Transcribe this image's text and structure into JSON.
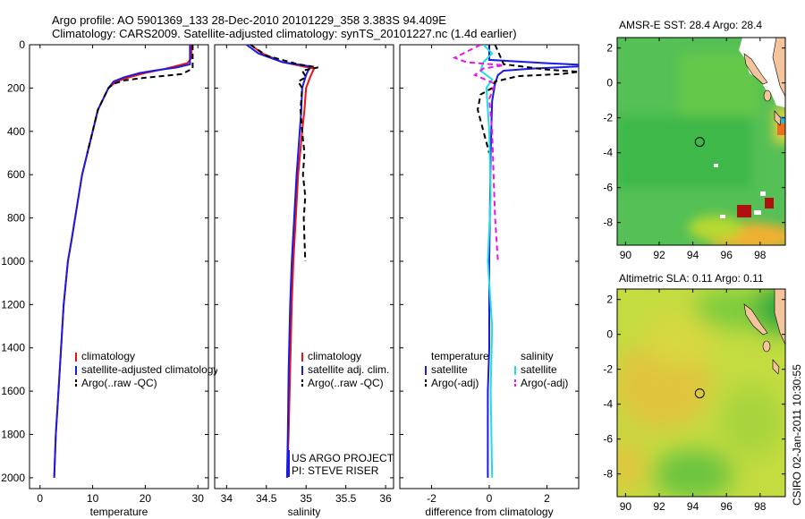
{
  "header": {
    "title_line1": "Argo profile: AO 5901369_133 28-Dec-2010 20101229_358 3.383S 94.409E",
    "title_line2": "Climatology: CARS2009. Satellite-adjusted climatology: synTS_20101227.nc (1.4d earlier)"
  },
  "side_text": "CSIRO 02-Jan-2011 10:30:55",
  "colors": {
    "climatology": "#ee1111",
    "satellite": "#1a1ae0",
    "argo": "#000000",
    "sal_satellite": "#22dddd",
    "sal_argo": "#ee11ee",
    "land": "#f4c49c"
  },
  "chart_data": [
    {
      "id": "temperature",
      "type": "line",
      "xlabel": "temperature",
      "xlim": [
        -2,
        32
      ],
      "ylim": [
        0,
        2050
      ],
      "yreversed": true,
      "xticks": [
        0,
        10,
        20,
        30
      ],
      "yticks": [
        0,
        200,
        400,
        600,
        800,
        1000,
        1200,
        1400,
        1600,
        1800,
        2000
      ],
      "legend": {
        "position": "lower-right",
        "entries": [
          "climatology",
          "satellite-adjusted climatology",
          "Argo(..raw -QC)"
        ]
      },
      "series": [
        {
          "name": "climatology",
          "color": "#ee1111",
          "style": "solid",
          "points": [
            [
              28.8,
              0
            ],
            [
              28.8,
              60
            ],
            [
              28,
              85
            ],
            [
              24,
              110
            ],
            [
              20,
              130
            ],
            [
              17,
              150
            ],
            [
              14.5,
              170
            ],
            [
              13,
              200
            ],
            [
              12,
              250
            ],
            [
              11,
              300
            ],
            [
              10,
              400
            ],
            [
              9,
              500
            ],
            [
              8,
              600
            ],
            [
              7,
              750
            ],
            [
              6,
              900
            ],
            [
              5.3,
              1000
            ],
            [
              4.5,
              1200
            ],
            [
              4,
              1400
            ],
            [
              3.5,
              1600
            ],
            [
              3,
              1800
            ],
            [
              2.7,
              2000
            ]
          ]
        },
        {
          "name": "satellite-adjusted climatology",
          "color": "#1a1ae0",
          "style": "solid",
          "points": [
            [
              28.5,
              0
            ],
            [
              28.5,
              90
            ],
            [
              26,
              105
            ],
            [
              22,
              118
            ],
            [
              19,
              130
            ],
            [
              16,
              150
            ],
            [
              14,
              170
            ],
            [
              13,
              200
            ],
            [
              12,
              250
            ],
            [
              11,
              300
            ],
            [
              10,
              400
            ],
            [
              9,
              500
            ],
            [
              8,
              600
            ],
            [
              7,
              750
            ],
            [
              6,
              900
            ],
            [
              5.3,
              1000
            ],
            [
              4.5,
              1200
            ],
            [
              4,
              1400
            ],
            [
              3.5,
              1600
            ],
            [
              3,
              1800
            ],
            [
              2.7,
              2000
            ]
          ]
        },
        {
          "name": "Argo(..raw -QC)",
          "color": "#000000",
          "style": "dashed",
          "points": [
            [
              29,
              0
            ],
            [
              29,
              110
            ],
            [
              27,
              135
            ],
            [
              23,
              145
            ],
            [
              19,
              155
            ],
            [
              16,
              165
            ],
            [
              14,
              180
            ],
            [
              13,
              200
            ],
            [
              12,
              250
            ],
            [
              11,
              300
            ],
            [
              10,
              400
            ],
            [
              9,
              500
            ]
          ]
        }
      ]
    },
    {
      "id": "salinity",
      "type": "line",
      "xlabel": "salinity",
      "xlim": [
        33.85,
        36.1
      ],
      "ylim": [
        0,
        2050
      ],
      "yreversed": true,
      "xticks": [
        34,
        34.5,
        35,
        35.5,
        36
      ],
      "legend": {
        "position": "lower-right",
        "entries": [
          "climatology",
          "satellite adj. clim.",
          "Argo(..raw -QC)"
        ]
      },
      "annotation": [
        "US ARGO PROJECT",
        "PI: STEVE RISER"
      ],
      "series": [
        {
          "name": "climatology",
          "color": "#ee1111",
          "style": "solid",
          "points": [
            [
              34.3,
              0
            ],
            [
              34.45,
              40
            ],
            [
              34.7,
              80
            ],
            [
              35.1,
              110
            ],
            [
              35.05,
              150
            ],
            [
              35.0,
              200
            ],
            [
              34.98,
              300
            ],
            [
              34.95,
              400
            ],
            [
              34.9,
              600
            ],
            [
              34.87,
              800
            ],
            [
              34.84,
              1000
            ],
            [
              34.82,
              1200
            ],
            [
              34.8,
              1500
            ],
            [
              34.78,
              1800
            ],
            [
              34.76,
              2000
            ]
          ]
        },
        {
          "name": "satellite adj. clim.",
          "color": "#1a1ae0",
          "style": "solid",
          "points": [
            [
              34.25,
              0
            ],
            [
              34.4,
              40
            ],
            [
              34.7,
              80
            ],
            [
              35.05,
              100
            ],
            [
              35.0,
              140
            ],
            [
              34.95,
              200
            ],
            [
              34.94,
              300
            ],
            [
              34.92,
              400
            ],
            [
              34.88,
              600
            ],
            [
              34.85,
              800
            ],
            [
              34.82,
              1000
            ],
            [
              34.8,
              1200
            ],
            [
              34.78,
              1500
            ],
            [
              34.77,
              1800
            ],
            [
              34.76,
              2000
            ]
          ]
        },
        {
          "name": "Argo(..raw -QC)",
          "color": "#000000",
          "style": "dashed",
          "points": [
            [
              34.3,
              0
            ],
            [
              34.5,
              50
            ],
            [
              34.9,
              90
            ],
            [
              35.15,
              105
            ],
            [
              34.95,
              120
            ],
            [
              35.0,
              150
            ],
            [
              34.9,
              170
            ],
            [
              34.95,
              200
            ],
            [
              34.93,
              300
            ],
            [
              34.95,
              400
            ],
            [
              34.98,
              500
            ],
            [
              34.96,
              600
            ],
            [
              34.99,
              700
            ],
            [
              34.97,
              800
            ],
            [
              34.98,
              900
            ],
            [
              34.99,
              1000
            ]
          ]
        }
      ]
    },
    {
      "id": "difference",
      "type": "line",
      "xlabel": "difference from climatology",
      "xlim": [
        -3.1,
        3.1
      ],
      "ylim": [
        0,
        2050
      ],
      "yreversed": true,
      "xticks": [
        -2,
        0,
        2
      ],
      "legend": {
        "position": "lower",
        "columns": [
          [
            "temperature",
            "satellite",
            "Argo(-adj)"
          ],
          [
            "salinity",
            "satellite",
            "Argo(-adj)"
          ]
        ]
      },
      "series": [
        {
          "name": "temperature satellite",
          "color": "#1a1ae0",
          "style": "solid",
          "points": [
            [
              0,
              0
            ],
            [
              0,
              70
            ],
            [
              2,
              85
            ],
            [
              3.1,
              92
            ],
            [
              3.1,
              100
            ],
            [
              1.5,
              110
            ],
            [
              0.5,
              120
            ],
            [
              0.3,
              140
            ],
            [
              0.2,
              180
            ],
            [
              0.1,
              260
            ],
            [
              0.05,
              500
            ],
            [
              0,
              1000
            ],
            [
              0,
              1400
            ],
            [
              -0.05,
              1600
            ],
            [
              -0.05,
              2000
            ]
          ]
        },
        {
          "name": "temperature Argo(-adj)",
          "color": "#000000",
          "style": "dashed",
          "points": [
            [
              0.2,
              0
            ],
            [
              0.5,
              90
            ],
            [
              2,
              115
            ],
            [
              3.1,
              125
            ],
            [
              2.5,
              135
            ],
            [
              1,
              145
            ],
            [
              0.2,
              170
            ],
            [
              0.1,
              200
            ],
            [
              -0.3,
              230
            ],
            [
              -0.4,
              300
            ],
            [
              -0.2,
              400
            ],
            [
              0,
              500
            ]
          ]
        },
        {
          "name": "salinity satellite",
          "color": "#22dddd",
          "style": "solid",
          "points": [
            [
              -0.2,
              0
            ],
            [
              0.1,
              40
            ],
            [
              -0.2,
              80
            ],
            [
              -0.3,
              120
            ],
            [
              0.1,
              160
            ],
            [
              -0.1,
              200
            ],
            [
              0,
              400
            ],
            [
              0.05,
              700
            ],
            [
              -0.05,
              1000
            ],
            [
              0.1,
              1300
            ],
            [
              0.05,
              1600
            ],
            [
              0.1,
              2000
            ]
          ]
        },
        {
          "name": "salinity Argo(-adj)",
          "color": "#ee11ee",
          "style": "dashed",
          "points": [
            [
              -0.3,
              0
            ],
            [
              -1.2,
              60
            ],
            [
              -0.8,
              80
            ],
            [
              0.5,
              95
            ],
            [
              -0.2,
              110
            ],
            [
              -0.5,
              140
            ],
            [
              0.2,
              180
            ],
            [
              0,
              250
            ],
            [
              0.1,
              400
            ],
            [
              0.15,
              600
            ],
            [
              0.2,
              800
            ],
            [
              0.3,
              1000
            ]
          ]
        }
      ]
    },
    {
      "id": "sst_map",
      "type": "heatmap",
      "title": "AMSR-E SST: 28.4 Argo: 28.4",
      "xlim": [
        89.5,
        99.5
      ],
      "ylim": [
        -9.3,
        2.6
      ],
      "xticks": [
        90,
        92,
        94,
        96,
        98
      ],
      "yticks": [
        -8,
        -6,
        -4,
        -2,
        0,
        2
      ],
      "profile_location": [
        94.409,
        -3.383
      ]
    },
    {
      "id": "sla_map",
      "type": "heatmap",
      "title": "Altimetric SLA: 0.11 Argo: 0.11",
      "xlim": [
        89.5,
        99.5
      ],
      "ylim": [
        -9.3,
        2.6
      ],
      "xticks": [
        90,
        92,
        94,
        96,
        98
      ],
      "yticks": [
        -8,
        -6,
        -4,
        -2,
        0,
        2
      ],
      "profile_location": [
        94.409,
        -3.383
      ]
    }
  ]
}
